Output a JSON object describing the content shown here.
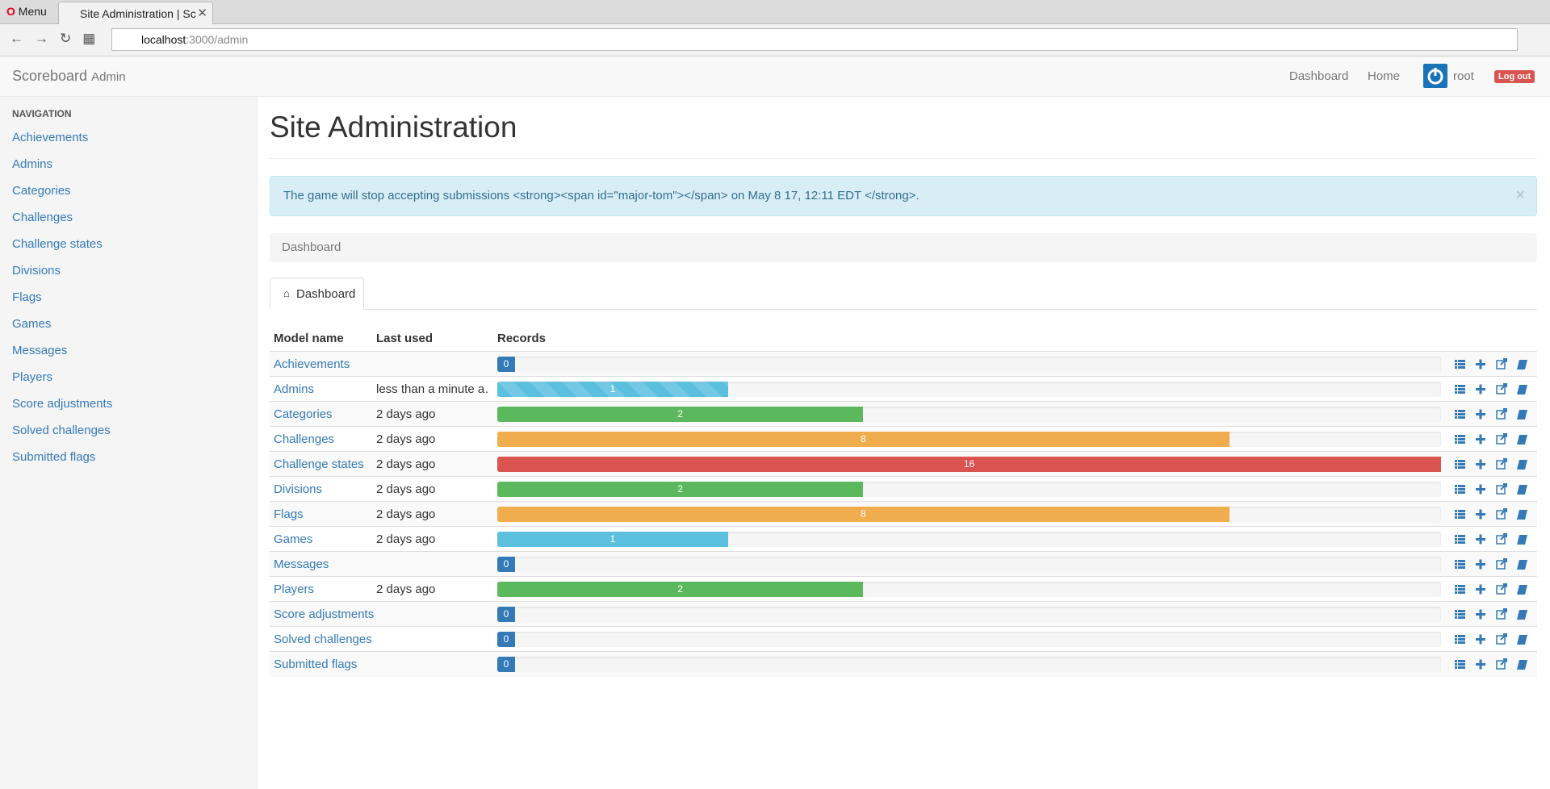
{
  "browser": {
    "menu": "Menu",
    "tab_title": "Site Administration | Sc",
    "url_host": "localhost",
    "url_path": ":3000/admin"
  },
  "navbar": {
    "brand": "Scoreboard",
    "brand_sub": "Admin",
    "links": [
      "Dashboard",
      "Home"
    ],
    "user": "root",
    "logout": "Log out"
  },
  "sidebar": {
    "heading": "NAVIGATION",
    "items": [
      "Achievements",
      "Admins",
      "Categories",
      "Challenges",
      "Challenge states",
      "Divisions",
      "Flags",
      "Games",
      "Messages",
      "Players",
      "Score adjustments",
      "Solved challenges",
      "Submitted flags"
    ]
  },
  "page": {
    "title": "Site Administration",
    "alert": "The game will stop accepting submissions <strong><span id=\"major-tom\"></span> on May 8 17, 12:11 EDT </strong>.",
    "breadcrumb": "Dashboard",
    "tab": "Dashboard"
  },
  "table": {
    "headers": [
      "Model name",
      "Last used",
      "Records"
    ],
    "rows": [
      {
        "model": "Achievements",
        "records": 0
      },
      {
        "model": "Admins",
        "last_used": "less than a minute a…",
        "records": 1
      },
      {
        "model": "Categories",
        "last_used": "2 days ago",
        "records": 2
      },
      {
        "model": "Challenges",
        "last_used": "2 days ago",
        "records": 8
      },
      {
        "model": "Challenge states",
        "last_used": "2 days ago",
        "records": 16
      },
      {
        "model": "Divisions",
        "last_used": "2 days ago",
        "records": 2
      },
      {
        "model": "Flags",
        "last_used": "2 days ago",
        "records": 8
      },
      {
        "model": "Games",
        "last_used": "2 days ago",
        "records": 1
      },
      {
        "model": "Messages",
        "records": 0
      },
      {
        "model": "Players",
        "last_used": "2 days ago",
        "records": 2
      },
      {
        "model": "Score adjustments",
        "records": 0
      },
      {
        "model": "Solved challenges",
        "records": 0
      },
      {
        "model": "Submitted flags",
        "records": 0
      }
    ]
  }
}
